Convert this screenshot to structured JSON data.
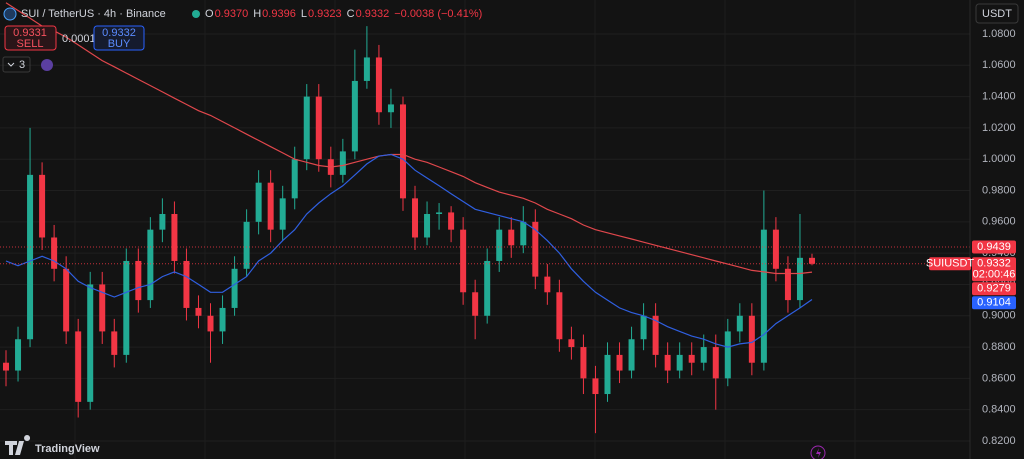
{
  "header": {
    "symbol": "SUI / TetherUS · 4h · Binance",
    "ohlc": [
      {
        "key": "O",
        "value": "0.9370"
      },
      {
        "key": "H",
        "value": "0.9396"
      },
      {
        "key": "L",
        "value": "0.9323"
      },
      {
        "key": "C",
        "value": "0.9332"
      }
    ],
    "change": "−0.0038 (−0.41%)",
    "sell": {
      "price": "0.9331",
      "label": "SELL"
    },
    "spread": "0.0001",
    "buy": {
      "price": "0.9332",
      "label": "BUY"
    },
    "indicators": "3",
    "currency": "USDT",
    "logo": "TradingView"
  },
  "chart_data": {
    "type": "candlestick",
    "ylim": [
      0.8085,
      1.1017
    ],
    "yticks": [
      {
        "value": 0.82,
        "label": "0.8200"
      },
      {
        "value": 0.84,
        "label": "0.8400"
      },
      {
        "value": 0.86,
        "label": "0.8600"
      },
      {
        "value": 0.88,
        "label": "0.8800"
      },
      {
        "value": 0.9,
        "label": "0.9000"
      },
      {
        "value": 0.92,
        "label": "0.9200"
      },
      {
        "value": 0.94,
        "label": "0.9400"
      },
      {
        "value": 0.96,
        "label": "0.9600"
      },
      {
        "value": 0.98,
        "label": "0.9800"
      },
      {
        "value": 1.0,
        "label": "1.0000"
      },
      {
        "value": 1.02,
        "label": "1.0200"
      },
      {
        "value": 1.04,
        "label": "1.0400"
      },
      {
        "value": 1.06,
        "label": "1.0600"
      },
      {
        "value": 1.08,
        "label": "1.0800"
      }
    ],
    "grid": true,
    "up_color": "#22ab94",
    "down_color": "#f23645",
    "open": [
      0.87,
      0.865,
      0.885,
      0.99,
      0.95,
      0.93,
      0.89,
      0.845,
      0.92,
      0.89,
      0.875,
      0.935,
      0.91,
      0.955,
      0.965,
      0.935,
      0.905,
      0.9,
      0.89,
      0.905,
      0.93,
      0.96,
      0.985,
      0.955,
      0.975,
      1.0,
      1.04,
      1.0,
      0.99,
      1.005,
      1.05,
      1.065,
      1.03,
      1.035,
      0.975,
      0.95,
      0.965,
      0.966,
      0.955,
      0.915,
      0.9,
      0.935,
      0.955,
      0.945,
      0.96,
      0.925,
      0.915,
      0.885,
      0.88,
      0.86,
      0.85,
      0.875,
      0.865,
      0.885,
      0.9,
      0.875,
      0.865,
      0.875,
      0.87,
      0.88,
      0.86,
      0.89,
      0.9,
      0.87,
      0.955,
      0.93,
      0.91,
      0.937
    ],
    "high": [
      0.878,
      0.893,
      1.02,
      0.998,
      0.958,
      0.938,
      0.898,
      0.928,
      0.928,
      0.898,
      0.943,
      0.943,
      0.963,
      0.975,
      0.973,
      0.943,
      0.913,
      0.908,
      0.913,
      0.938,
      0.968,
      0.993,
      0.993,
      0.983,
      1.008,
      1.048,
      1.048,
      1.008,
      1.013,
      1.07,
      1.085,
      1.073,
      1.045,
      1.04,
      0.983,
      0.973,
      0.972,
      0.97,
      0.963,
      0.923,
      0.943,
      0.963,
      0.963,
      0.97,
      0.968,
      0.933,
      0.923,
      0.893,
      0.888,
      0.868,
      0.883,
      0.883,
      0.893,
      0.908,
      0.908,
      0.883,
      0.883,
      0.883,
      0.888,
      0.888,
      0.898,
      0.908,
      0.908,
      0.98,
      0.963,
      0.938,
      0.965,
      0.9396
    ],
    "low": [
      0.855,
      0.858,
      0.88,
      0.942,
      0.922,
      0.882,
      0.835,
      0.84,
      0.882,
      0.867,
      0.87,
      0.902,
      0.905,
      0.947,
      0.927,
      0.897,
      0.892,
      0.87,
      0.882,
      0.9,
      0.925,
      0.952,
      0.947,
      0.948,
      0.968,
      0.993,
      0.992,
      0.982,
      0.985,
      1.0,
      1.045,
      1.022,
      1.02,
      0.967,
      0.942,
      0.945,
      0.955,
      0.947,
      0.907,
      0.885,
      0.895,
      0.928,
      0.937,
      0.94,
      0.917,
      0.907,
      0.877,
      0.872,
      0.85,
      0.825,
      0.845,
      0.857,
      0.86,
      0.878,
      0.867,
      0.857,
      0.86,
      0.862,
      0.865,
      0.84,
      0.855,
      0.883,
      0.862,
      0.865,
      0.922,
      0.902,
      0.905,
      0.9323
    ],
    "close": [
      0.865,
      0.885,
      0.99,
      0.95,
      0.93,
      0.89,
      0.845,
      0.92,
      0.89,
      0.875,
      0.935,
      0.91,
      0.955,
      0.965,
      0.935,
      0.905,
      0.9,
      0.89,
      0.905,
      0.93,
      0.96,
      0.985,
      0.955,
      0.975,
      1.0,
      1.04,
      1.0,
      0.99,
      1.005,
      1.05,
      1.065,
      1.03,
      1.035,
      0.975,
      0.95,
      0.965,
      0.966,
      0.955,
      0.915,
      0.9,
      0.935,
      0.955,
      0.945,
      0.96,
      0.925,
      0.915,
      0.885,
      0.88,
      0.86,
      0.85,
      0.875,
      0.865,
      0.885,
      0.9,
      0.875,
      0.865,
      0.875,
      0.87,
      0.88,
      0.86,
      0.89,
      0.9,
      0.87,
      0.955,
      0.93,
      0.91,
      0.937,
      0.9332
    ],
    "overlays": [
      {
        "color": "#e0474c",
        "values": [
          1.1,
          1.095,
          1.09,
          1.085,
          1.082,
          1.078,
          1.073,
          1.068,
          1.063,
          1.059,
          1.055,
          1.051,
          1.047,
          1.043,
          1.039,
          1.035,
          1.031,
          1.028,
          1.024,
          1.02,
          1.016,
          1.012,
          1.008,
          1.004,
          1.0,
          0.998,
          0.996,
          0.995,
          0.996,
          0.998,
          1.0,
          1.002,
          1.003,
          1.003,
          1.0,
          0.998,
          0.995,
          0.992,
          0.989,
          0.985,
          0.982,
          0.979,
          0.977,
          0.975,
          0.972,
          0.968,
          0.965,
          0.962,
          0.958,
          0.955,
          0.953,
          0.951,
          0.949,
          0.947,
          0.945,
          0.943,
          0.941,
          0.939,
          0.937,
          0.935,
          0.933,
          0.931,
          0.929,
          0.928,
          0.927,
          0.927,
          0.927,
          0.9279
        ]
      },
      {
        "color": "#2f5fe0",
        "values": [
          0.935,
          0.932,
          0.935,
          0.938,
          0.935,
          0.93,
          0.922,
          0.918,
          0.915,
          0.912,
          0.915,
          0.918,
          0.92,
          0.925,
          0.928,
          0.925,
          0.92,
          0.915,
          0.915,
          0.92,
          0.925,
          0.935,
          0.94,
          0.948,
          0.955,
          0.965,
          0.972,
          0.978,
          0.983,
          0.99,
          0.997,
          1.002,
          1.003,
          1.0,
          0.993,
          0.988,
          0.983,
          0.978,
          0.973,
          0.968,
          0.966,
          0.964,
          0.962,
          0.96,
          0.955,
          0.948,
          0.94,
          0.93,
          0.922,
          0.915,
          0.91,
          0.905,
          0.902,
          0.9,
          0.897,
          0.893,
          0.89,
          0.887,
          0.885,
          0.882,
          0.88,
          0.882,
          0.883,
          0.888,
          0.895,
          0.9,
          0.905,
          0.9104
        ]
      }
    ],
    "price_tags": [
      {
        "value": 0.9439,
        "label": "0.9439",
        "color": "#f23645",
        "dotted": true
      },
      {
        "value": 0.9332,
        "label": "0.9332",
        "color": "#f23645",
        "dotted": true,
        "symbol": "SUIUSDT",
        "countdown": "02:00:46"
      },
      {
        "value": 0.9279,
        "label": "0.9279",
        "color": "#f23645"
      },
      {
        "value": 0.9104,
        "label": "0.9104",
        "color": "#2962ff"
      }
    ]
  }
}
